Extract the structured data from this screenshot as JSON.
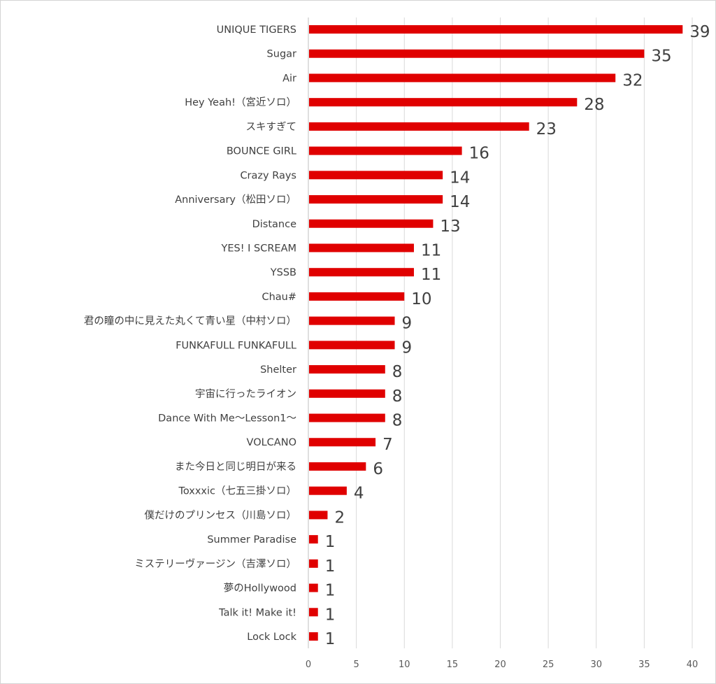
{
  "chart_data": {
    "type": "bar",
    "orientation": "horizontal",
    "title": "",
    "xlabel": "",
    "ylabel": "",
    "xlim": [
      0,
      40
    ],
    "x_ticks": [
      0,
      5,
      10,
      15,
      20,
      25,
      30,
      35,
      40
    ],
    "grid": true,
    "legend": "none",
    "bar_color": "#e00000",
    "categories": [
      "UNIQUE TIGERS",
      "Sugar",
      "Air",
      "Hey Yeah!（宮近ソロ）",
      "スキすぎて",
      "BOUNCE GIRL",
      "Crazy Rays",
      "Anniversary（松田ソロ）",
      "Distance",
      "YES! I SCREAM",
      "YSSB",
      "Chau#",
      "君の瞳の中に見えた丸くて青い星（中村ソロ）",
      "FUNKAFULL FUNKAFULL",
      "Shelter",
      "宇宙に行ったライオン",
      "Dance With Me～Lesson1～",
      "VOLCANO",
      "また今日と同じ明日が来る",
      "Toxxxic（七五三掛ソロ）",
      "僕だけのプリンセス（川島ソロ）",
      "Summer Paradise",
      "ミステリーヴァージン（吉澤ソロ）",
      "夢のHollywood",
      "Talk it! Make it!",
      "Lock Lock"
    ],
    "values": [
      39,
      35,
      32,
      28,
      23,
      16,
      14,
      14,
      13,
      11,
      11,
      10,
      9,
      9,
      8,
      8,
      8,
      7,
      6,
      4,
      2,
      1,
      1,
      1,
      1,
      1
    ]
  }
}
